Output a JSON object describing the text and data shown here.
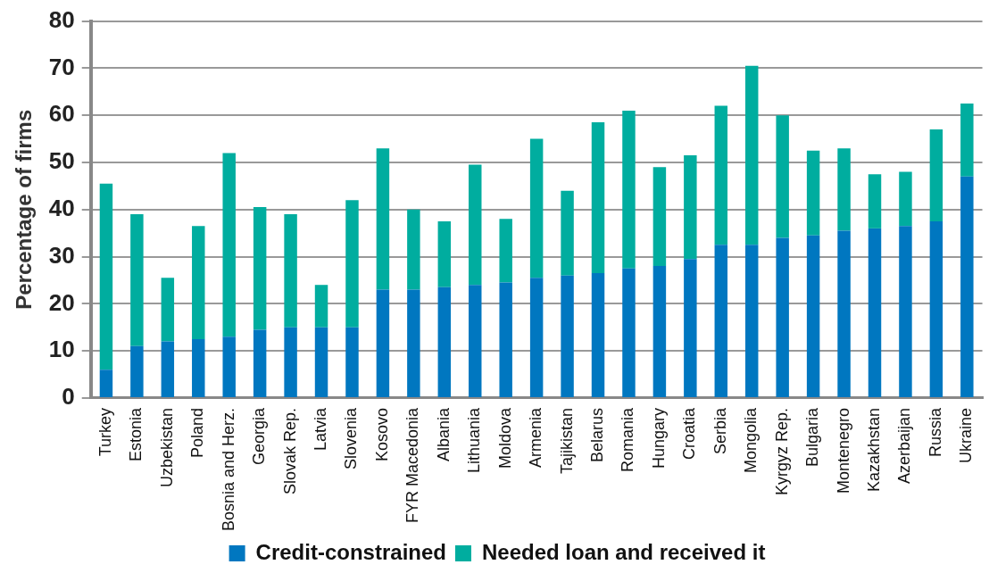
{
  "chart_data": {
    "type": "bar",
    "stacked": true,
    "ylabel": "Percentage of firms",
    "categories": [
      "Turkey",
      "Estonia",
      "Uzbekistan",
      "Poland",
      "Bosnia and Herz.",
      "Georgia",
      "Slovak Rep.",
      "Latvia",
      "Slovenia",
      "Kosovo",
      "FYR Macedonia",
      "Albania",
      "Lithuania",
      "Moldova",
      "Armenia",
      "Tajikistan",
      "Belarus",
      "Romania",
      "Hungary",
      "Croatia",
      "Serbia",
      "Mongolia",
      "Kyrgyz Rep.",
      "Bulgaria",
      "Montenegro",
      "Kazakhstan",
      "Azerbaijan",
      "Russia",
      "Ukraine"
    ],
    "series": [
      {
        "name": "Credit-constrained",
        "color": "#0077c0",
        "values": [
          6,
          11,
          12,
          12.5,
          13,
          14.5,
          15,
          15,
          15,
          23,
          23,
          23.5,
          24,
          24.5,
          25.5,
          26,
          26.5,
          27.5,
          28,
          29.5,
          32.5,
          32.5,
          34,
          34.5,
          35.5,
          36,
          36.5,
          37.5,
          47
        ]
      },
      {
        "name": "Needed loan and received it",
        "color": "#00ad9f",
        "values": [
          39.5,
          28,
          13.5,
          24,
          39,
          26,
          24,
          9,
          27,
          30,
          17,
          14,
          25.5,
          13.5,
          29.5,
          18,
          32,
          33.5,
          21,
          22,
          29.5,
          38,
          26,
          18,
          17.5,
          11.5,
          11.5,
          19.5,
          15.5
        ]
      }
    ],
    "ylim": [
      0,
      80
    ],
    "yticks": [
      0,
      10,
      20,
      30,
      40,
      50,
      60,
      70,
      80
    ],
    "grid": "y",
    "legend": "bottom"
  }
}
